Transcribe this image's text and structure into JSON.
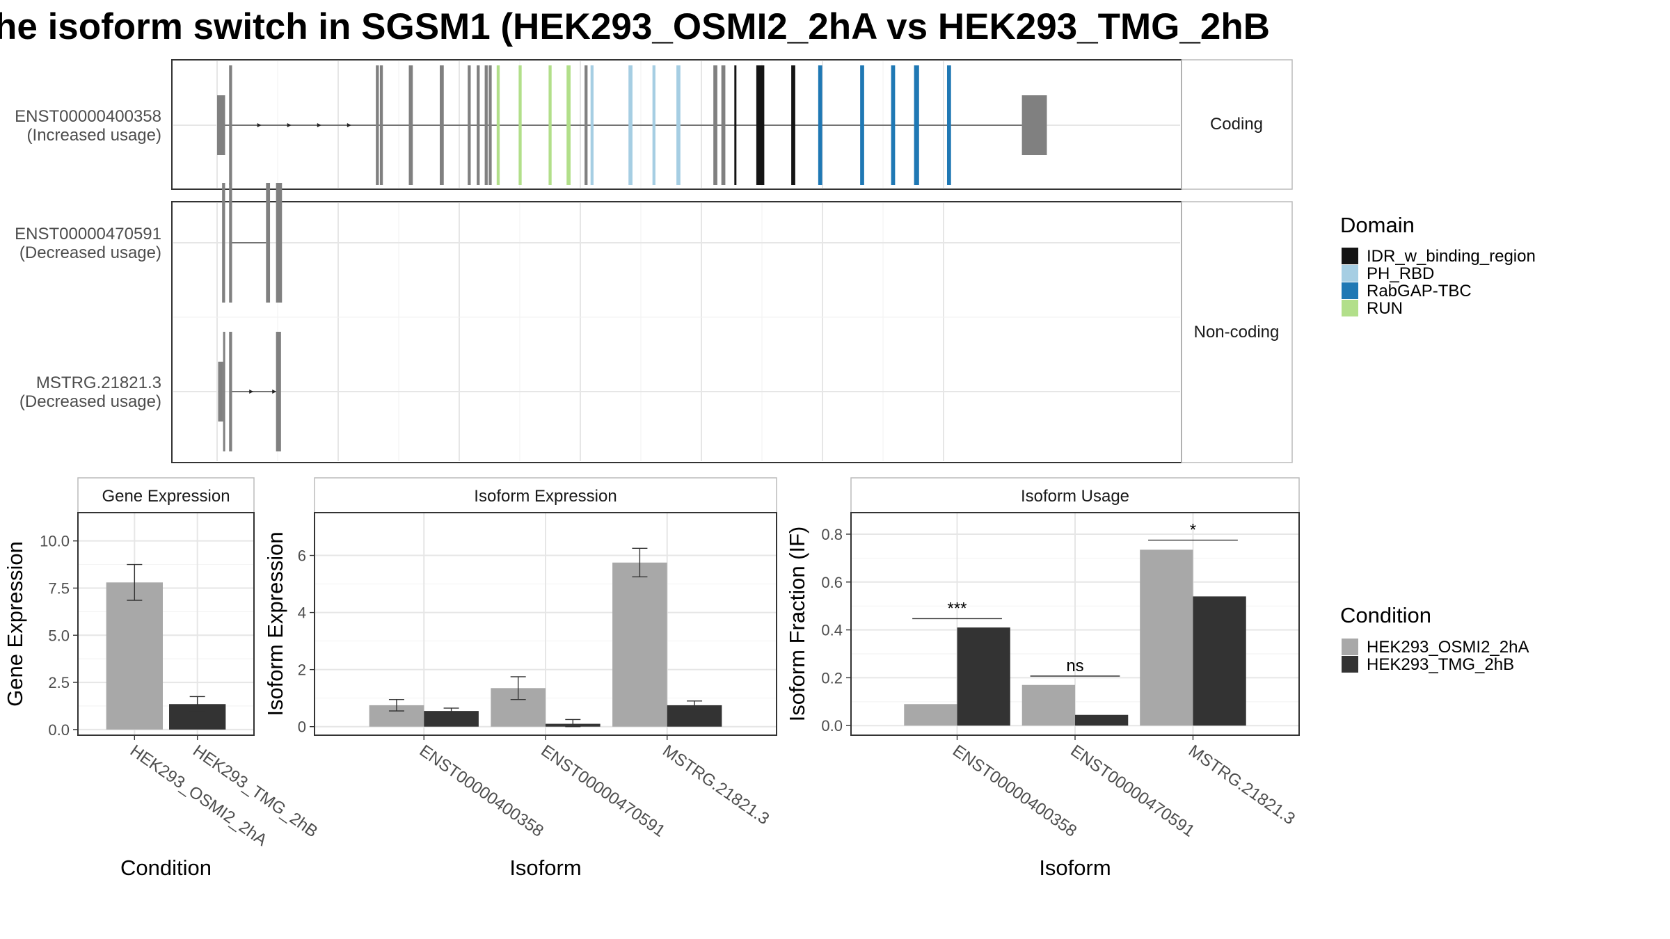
{
  "title": "he isoform switch in SGSM1 (HEK293_OSMI2_2hA vs HEK293_TMG_2hB",
  "chart_data": [
    {
      "type": "diagram",
      "panel": "transcript-structure",
      "facets": [
        "Coding",
        "Non-coding"
      ],
      "transcripts": [
        {
          "id": "ENST00000400358",
          "label": [
            "ENST00000400358",
            "(Increased usage)"
          ],
          "facet": "Coding",
          "utr_exons": [
            [
              0.0,
              0.8
            ],
            [
              80.6,
              83.1
            ]
          ],
          "exons": [
            [
              1.2,
              1.5
            ],
            [
              15.9,
              16.2
            ],
            [
              16.3,
              16.6
            ],
            [
              19.2,
              19.6
            ],
            [
              22.3,
              22.7
            ],
            [
              25.1,
              25.4
            ],
            [
              26.0,
              26.3
            ],
            [
              26.8,
              27.1
            ],
            [
              27.2,
              27.5
            ],
            [
              28.0,
              28.3
            ],
            [
              30.2,
              30.5
            ],
            [
              33.2,
              33.5
            ],
            [
              35.0,
              35.4
            ],
            [
              36.8,
              37.1
            ],
            [
              37.4,
              37.7
            ],
            [
              41.2,
              41.6
            ],
            [
              43.6,
              43.9
            ],
            [
              46.0,
              46.4
            ],
            [
              49.7,
              50.1
            ],
            [
              50.5,
              50.9
            ],
            [
              51.8,
              52.0
            ],
            [
              54.0,
              54.8
            ],
            [
              57.5,
              57.9
            ],
            [
              60.2,
              60.6
            ],
            [
              64.4,
              64.8
            ],
            [
              67.5,
              67.9
            ],
            [
              69.8,
              70.3
            ],
            [
              73.1,
              73.5
            ]
          ],
          "domains": [
            {
              "exon": 10,
              "domain": "RUN"
            },
            {
              "exon": 11,
              "domain": "RUN"
            },
            {
              "exon": 12,
              "domain": "RUN"
            },
            {
              "exon": 13,
              "domain": "RUN"
            },
            {
              "exon": 15,
              "domain": "PH_RBD"
            },
            {
              "exon": 16,
              "domain": "PH_RBD"
            },
            {
              "exon": 17,
              "domain": "PH_RBD"
            },
            {
              "exon": 18,
              "domain": "PH_RBD"
            },
            {
              "exon": 21,
              "domain": "IDR_w_binding_region"
            },
            {
              "exon": 22,
              "domain": "IDR_w_binding_region"
            },
            {
              "exon": 23,
              "domain": "IDR_w_binding_region"
            },
            {
              "exon": 24,
              "domain": "RabGAP-TBC"
            },
            {
              "exon": 25,
              "domain": "RabGAP-TBC"
            },
            {
              "exon": 26,
              "domain": "RabGAP-TBC"
            },
            {
              "exon": 27,
              "domain": "RabGAP-TBC"
            },
            {
              "exon": 28,
              "domain": "RabGAP-TBC"
            }
          ],
          "intron": [
            0.8,
            80.6
          ],
          "arrows": [
            4.3,
            7.3,
            10.3,
            13.3
          ]
        },
        {
          "id": "ENST00000470591",
          "label": [
            "ENST00000470591",
            "(Decreased usage)"
          ],
          "facet": "Non-coding",
          "utr_exons": [],
          "exons": [
            [
              0.5,
              0.8
            ],
            [
              1.2,
              1.5
            ],
            [
              4.9,
              5.3
            ],
            [
              5.9,
              6.5
            ]
          ],
          "domains": [],
          "intron": [
            1.5,
            4.9
          ],
          "arrows": []
        },
        {
          "id": "MSTRG.21821.3",
          "label": [
            "MSTRG.21821.3",
            "(Decreased usage)"
          ],
          "facet": "Non-coding",
          "utr_exons": [
            [
              0.1,
              0.6
            ]
          ],
          "exons": [
            [
              0.6,
              0.8
            ],
            [
              1.2,
              1.5
            ],
            [
              5.9,
              6.4
            ]
          ],
          "domains": [],
          "intron": [
            1.5,
            5.9
          ],
          "arrows": [
            3.5,
            5.8
          ]
        }
      ],
      "legend": {
        "title": "Domain",
        "entries": [
          {
            "name": "IDR_w_binding_region",
            "color": "#141414"
          },
          {
            "name": "PH_RBD",
            "color": "#a6cee3"
          },
          {
            "name": "RabGAP-TBC",
            "color": "#1f78b4"
          },
          {
            "name": "RUN",
            "color": "#b2df8a"
          }
        ]
      },
      "colors": {
        "exon": "#808080",
        "intron": "#4d4d4d"
      }
    },
    {
      "type": "bar",
      "panel": "gene-expression",
      "facet_title": "Gene Expression",
      "xlabel": "Condition",
      "ylabel": "Gene Expression",
      "categories": [
        "HEK293_OSMI2_2hA",
        "HEK293_TMG_2hB"
      ],
      "values": [
        7.8,
        1.35
      ],
      "errors": [
        [
          6.85,
          8.75
        ],
        [
          0.95,
          1.75
        ]
      ],
      "ylim": [
        -0.3,
        11.5
      ],
      "yticks": [
        0.0,
        2.5,
        5.0,
        7.5,
        10.0
      ],
      "ytick_labels": [
        "0.0",
        "2.5",
        "5.0",
        "7.5",
        "10.0"
      ]
    },
    {
      "type": "bar",
      "panel": "isoform-expression",
      "facet_title": "Isoform Expression",
      "xlabel": "Isoform",
      "ylabel": "Isoform Expression",
      "categories": [
        "ENST00000400358",
        "ENST00000470591",
        "MSTRG.21821.3"
      ],
      "series": [
        {
          "name": "HEK293_OSMI2_2hA",
          "values": [
            0.75,
            1.35,
            5.75
          ],
          "errors": [
            [
              0.55,
              0.95
            ],
            [
              0.95,
              1.75
            ],
            [
              5.25,
              6.25
            ]
          ]
        },
        {
          "name": "HEK293_TMG_2hB",
          "values": [
            0.55,
            0.1,
            0.75
          ],
          "errors": [
            [
              0.45,
              0.65
            ],
            [
              0.0,
              0.25
            ],
            [
              0.6,
              0.9
            ]
          ]
        }
      ],
      "ylim": [
        -0.3,
        7.5
      ],
      "yticks": [
        0,
        2,
        4,
        6
      ],
      "ytick_labels": [
        "0",
        "2",
        "4",
        "6"
      ]
    },
    {
      "type": "bar",
      "panel": "isoform-usage",
      "facet_title": "Isoform Usage",
      "xlabel": "Isoform",
      "ylabel": "Isoform Fraction (IF)",
      "categories": [
        "ENST00000400358",
        "ENST00000470591",
        "MSTRG.21821.3"
      ],
      "series": [
        {
          "name": "HEK293_OSMI2_2hA",
          "values": [
            0.09,
            0.17,
            0.735
          ]
        },
        {
          "name": "HEK293_TMG_2hB",
          "values": [
            0.41,
            0.045,
            0.54
          ]
        }
      ],
      "significance": [
        "***",
        "ns",
        "*"
      ],
      "significance_y": [
        0.447,
        0.207,
        0.775
      ],
      "ylim": [
        -0.04,
        0.89
      ],
      "yticks": [
        0.0,
        0.2,
        0.4,
        0.6,
        0.8
      ],
      "ytick_labels": [
        "0.0",
        "0.2",
        "0.4",
        "0.6",
        "0.8"
      ]
    }
  ],
  "condition_legend": {
    "title": "Condition",
    "entries": [
      {
        "name": "HEK293_OSMI2_2hA",
        "color": "#a8a8a8"
      },
      {
        "name": "HEK293_TMG_2hB",
        "color": "#333333"
      }
    ]
  }
}
